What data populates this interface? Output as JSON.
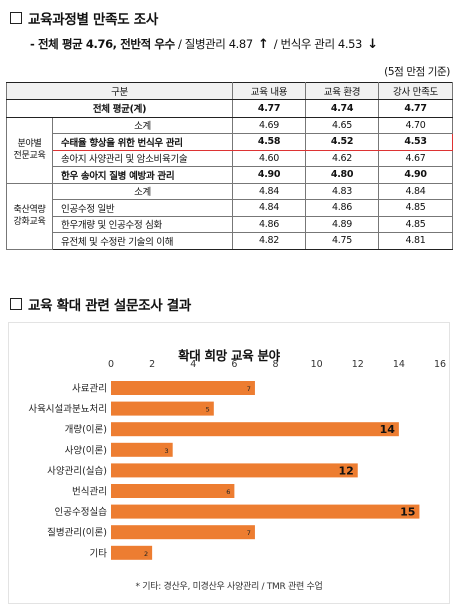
{
  "section1": {
    "title": "교육과정별 만족도 조사"
  },
  "summary": {
    "prefix": "- 전체 평균 4.76, 전반적 우수",
    "sep1": " / ",
    "item1": "질병관리 4.87",
    "up_arrow": "↑",
    "sep2": " / ",
    "item2": "번식우 관리 4.53",
    "down_arrow": "↓"
  },
  "scale_note": "(5점 만점 기준)",
  "table": {
    "headers": [
      "구분",
      "교육 내용",
      "교육 환경",
      "강사 만족도"
    ],
    "total": {
      "label": "전체 평균(계)",
      "values": [
        "4.77",
        "4.74",
        "4.77"
      ]
    },
    "group1": {
      "label": "분야별\n전문교육",
      "rows": [
        {
          "label": "소계",
          "values": [
            "4.69",
            "4.65",
            "4.70"
          ]
        },
        {
          "label": "수태율 향상을 위한 번식우 관리",
          "values": [
            "4.58",
            "4.52",
            "4.53"
          ]
        },
        {
          "label": "송아지 사양관리 및 암소비육기술",
          "values": [
            "4.60",
            "4.62",
            "4.67"
          ]
        },
        {
          "label": "한우 송아지 질병 예방과 관리",
          "values": [
            "4.90",
            "4.80",
            "4.90"
          ]
        }
      ]
    },
    "group2": {
      "label": "축산역량\n강화교육",
      "rows": [
        {
          "label": "소계",
          "values": [
            "4.84",
            "4.83",
            "4.84"
          ]
        },
        {
          "label": "인공수정 일반",
          "values": [
            "4.84",
            "4.86",
            "4.85"
          ]
        },
        {
          "label": "한우개량 및 인공수정 심화",
          "values": [
            "4.86",
            "4.89",
            "4.85"
          ]
        },
        {
          "label": "유전체 및 수정란 기술의 이해",
          "values": [
            "4.82",
            "4.75",
            "4.81"
          ]
        }
      ]
    }
  },
  "section2": {
    "title": "교육 확대 관련 설문조사 결과"
  },
  "chart_data": {
    "type": "bar",
    "orientation": "horizontal",
    "title": "확대 희망 교육 분야",
    "categories": [
      "사료관리",
      "사육시설과분뇨처리",
      "개량(이론)",
      "사양(이론)",
      "사양관리(실습)",
      "번식관리",
      "인공수정실습",
      "질병관리(이론)",
      "기타"
    ],
    "values": [
      7,
      5,
      14,
      3,
      12,
      6,
      15,
      7,
      2
    ],
    "xlim": [
      0,
      16
    ],
    "xticks": [
      0,
      2,
      4,
      6,
      8,
      10,
      12,
      14,
      16
    ],
    "bar_color": "#ed7d31",
    "note": "* 기타: 경산우, 미경산우 사양관리 / TMR 관련 수업"
  }
}
